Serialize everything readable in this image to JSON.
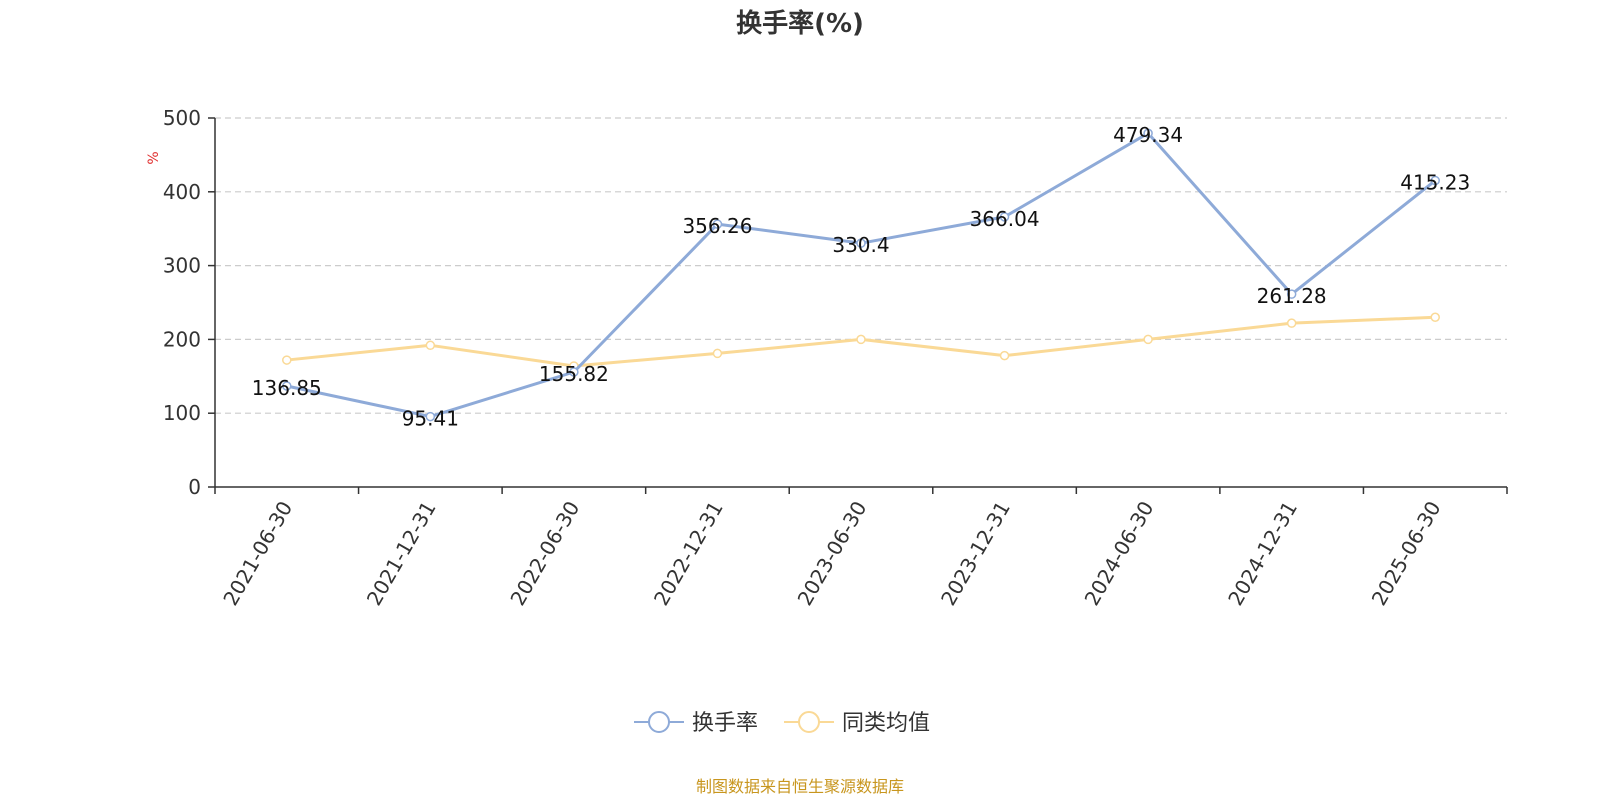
{
  "chart_data": {
    "type": "line",
    "title": "换手率(%)",
    "ylabel": "%",
    "ylim": [
      0,
      500
    ],
    "yticks": [
      0,
      100,
      200,
      300,
      400,
      500
    ],
    "categories": [
      "2021-06-30",
      "2021-12-31",
      "2022-06-30",
      "2022-12-31",
      "2023-06-30",
      "2023-12-31",
      "2024-06-30",
      "2024-12-31",
      "2025-06-30"
    ],
    "series": [
      {
        "name": "换手率",
        "color": "#8eaad8",
        "values": [
          136.85,
          95.41,
          155.82,
          356.26,
          330.4,
          366.04,
          479.34,
          261.28,
          415.23
        ],
        "labels": [
          "136.85",
          "95.41",
          "155.82",
          "356.26",
          "330.4",
          "366.04",
          "479.34",
          "261.28",
          "415.23"
        ],
        "show_labels": true
      },
      {
        "name": "同类均值",
        "color": "#fad996",
        "values": [
          172,
          192,
          164,
          181,
          200,
          178,
          200,
          222,
          230
        ],
        "show_labels": false
      }
    ],
    "grid": "horizontal dashed",
    "legend_position": "bottom-center",
    "source_note": "制图数据来自恒生聚源数据库"
  }
}
